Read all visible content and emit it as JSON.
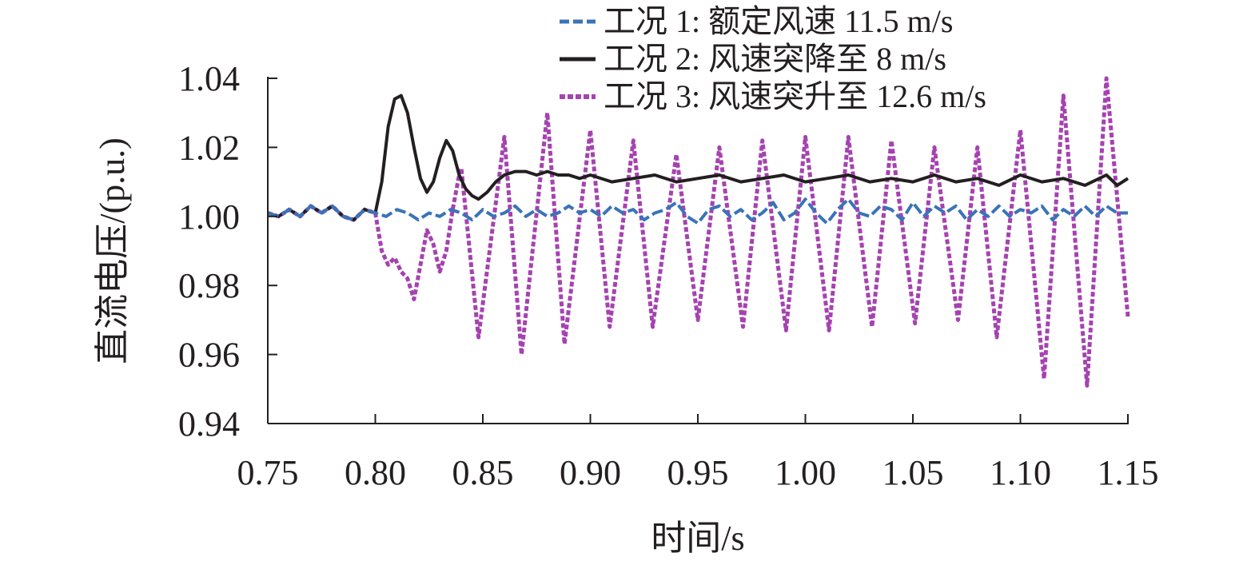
{
  "chart_data": {
    "type": "line",
    "title": "",
    "xlabel": "时间/s",
    "ylabel": "直流电压/(p.u.)",
    "xlim": [
      0.75,
      1.15
    ],
    "ylim": [
      0.94,
      1.04
    ],
    "xticks": [
      "0.75",
      "0.80",
      "0.85",
      "0.90",
      "0.95",
      "1.00",
      "1.05",
      "1.10",
      "1.15"
    ],
    "yticks": [
      "0.94",
      "0.96",
      "0.98",
      "1.00",
      "1.02",
      "1.04"
    ],
    "grid": false,
    "legend_position": "top-right",
    "series": [
      {
        "name": "工况 1: 额定风速 11.5 m/s",
        "color": "#3a73b8",
        "style": "dashed",
        "x": [
          0.75,
          0.755,
          0.76,
          0.765,
          0.77,
          0.775,
          0.78,
          0.785,
          0.79,
          0.795,
          0.8,
          0.805,
          0.81,
          0.815,
          0.82,
          0.825,
          0.83,
          0.835,
          0.84,
          0.845,
          0.85,
          0.855,
          0.86,
          0.865,
          0.87,
          0.875,
          0.88,
          0.885,
          0.89,
          0.895,
          0.9,
          0.905,
          0.91,
          0.915,
          0.92,
          0.925,
          0.93,
          0.935,
          0.94,
          0.945,
          0.95,
          0.955,
          0.96,
          0.965,
          0.97,
          0.975,
          0.98,
          0.985,
          0.99,
          0.995,
          1.0,
          1.005,
          1.01,
          1.015,
          1.02,
          1.025,
          1.03,
          1.035,
          1.04,
          1.045,
          1.05,
          1.055,
          1.06,
          1.065,
          1.07,
          1.075,
          1.08,
          1.085,
          1.09,
          1.095,
          1.1,
          1.105,
          1.11,
          1.115,
          1.12,
          1.125,
          1.13,
          1.135,
          1.14,
          1.145,
          1.15
        ],
        "y": [
          1.001,
          1.0,
          1.002,
          1.0,
          1.003,
          1.001,
          1.003,
          1.0,
          0.999,
          1.002,
          1.001,
          1.0,
          1.002,
          1.001,
          0.999,
          1.001,
          1.0,
          1.002,
          1.001,
          0.999,
          1.002,
          1.0,
          1.001,
          1.003,
          1.0,
          1.002,
          1.0,
          1.001,
          1.003,
          1.001,
          1.002,
          1.0,
          1.003,
          1.001,
          1.002,
          0.999,
          1.001,
          1.002,
          1.004,
          1.0,
          0.998,
          1.002,
          1.003,
          1.0,
          1.002,
          0.999,
          1.001,
          1.004,
          0.999,
          1.001,
          1.005,
          1.001,
          0.998,
          1.002,
          1.005,
          1.001,
          1.0,
          1.003,
          1.002,
          0.999,
          1.004,
          1.0,
          1.003,
          1.001,
          1.003,
          0.999,
          1.002,
          1.0,
          1.003,
          1.0,
          1.002,
          1.001,
          1.003,
          0.999,
          1.002,
          1.0,
          1.003,
          1.0,
          1.003,
          1.001,
          1.001
        ]
      },
      {
        "name": "工况 2: 风速突降至 8 m/s",
        "color": "#231f20",
        "style": "solid",
        "x": [
          0.75,
          0.755,
          0.76,
          0.765,
          0.77,
          0.775,
          0.78,
          0.785,
          0.79,
          0.795,
          0.8,
          0.803,
          0.806,
          0.809,
          0.812,
          0.815,
          0.818,
          0.821,
          0.824,
          0.827,
          0.83,
          0.833,
          0.836,
          0.839,
          0.842,
          0.845,
          0.848,
          0.852,
          0.856,
          0.86,
          0.865,
          0.87,
          0.875,
          0.88,
          0.885,
          0.89,
          0.895,
          0.9,
          0.91,
          0.92,
          0.93,
          0.94,
          0.95,
          0.96,
          0.97,
          0.98,
          0.99,
          1.0,
          1.01,
          1.02,
          1.03,
          1.04,
          1.05,
          1.06,
          1.07,
          1.08,
          1.09,
          1.1,
          1.11,
          1.12,
          1.13,
          1.14,
          1.145,
          1.15
        ],
        "y": [
          1.001,
          1.0,
          1.002,
          1.0,
          1.003,
          1.001,
          1.003,
          1.0,
          0.999,
          1.002,
          1.001,
          1.01,
          1.026,
          1.034,
          1.035,
          1.03,
          1.02,
          1.011,
          1.007,
          1.01,
          1.017,
          1.022,
          1.019,
          1.012,
          1.008,
          1.006,
          1.005,
          1.007,
          1.01,
          1.012,
          1.013,
          1.013,
          1.012,
          1.013,
          1.012,
          1.012,
          1.011,
          1.012,
          1.01,
          1.011,
          1.012,
          1.01,
          1.011,
          1.012,
          1.01,
          1.011,
          1.012,
          1.01,
          1.011,
          1.012,
          1.01,
          1.011,
          1.01,
          1.012,
          1.01,
          1.011,
          1.009,
          1.012,
          1.01,
          1.011,
          1.009,
          1.012,
          1.009,
          1.011
        ]
      },
      {
        "name": "工况 3: 风速突升至 12.6 m/s",
        "color": "#a542b0",
        "style": "dotted",
        "x": [
          0.75,
          0.755,
          0.76,
          0.765,
          0.77,
          0.775,
          0.78,
          0.785,
          0.79,
          0.795,
          0.8,
          0.803,
          0.806,
          0.809,
          0.812,
          0.815,
          0.818,
          0.821,
          0.824,
          0.827,
          0.83,
          0.833,
          0.836,
          0.839,
          0.84,
          0.848,
          0.86,
          0.868,
          0.88,
          0.888,
          0.9,
          0.909,
          0.92,
          0.929,
          0.94,
          0.95,
          0.96,
          0.971,
          0.98,
          0.991,
          1.0,
          1.011,
          1.02,
          1.031,
          1.04,
          1.051,
          1.06,
          1.071,
          1.08,
          1.089,
          1.1,
          1.111,
          1.12,
          1.131,
          1.14,
          1.15
        ],
        "y": [
          1.001,
          1.0,
          1.002,
          1.0,
          1.003,
          1.001,
          1.003,
          1.0,
          0.999,
          1.002,
          1.001,
          0.99,
          0.986,
          0.988,
          0.984,
          0.982,
          0.976,
          0.986,
          0.996,
          0.992,
          0.984,
          0.99,
          1.002,
          1.012,
          1.014,
          0.965,
          1.023,
          0.96,
          1.03,
          0.963,
          1.025,
          0.968,
          1.022,
          0.968,
          1.018,
          0.97,
          1.02,
          0.968,
          1.022,
          0.967,
          1.023,
          0.967,
          1.023,
          0.968,
          1.022,
          0.969,
          1.02,
          0.97,
          1.02,
          0.965,
          1.025,
          0.953,
          1.035,
          0.951,
          1.04,
          0.971
        ]
      }
    ]
  }
}
